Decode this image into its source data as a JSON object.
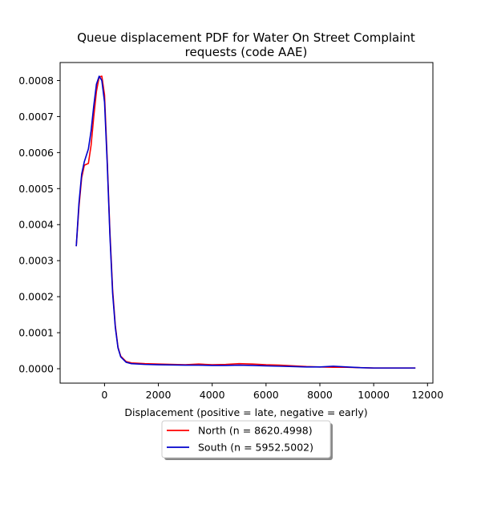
{
  "chart_data": {
    "type": "line",
    "title_lines": [
      "Queue displacement PDF for Water On Street Complaint",
      "requests (code AAE)"
    ],
    "xlabel": "Displacement (positive = late, negative = early)",
    "ylabel": "",
    "xlim": [
      -1650,
      12200
    ],
    "ylim": [
      -4e-05,
      0.00085
    ],
    "x_ticks": [
      0,
      2000,
      4000,
      6000,
      8000,
      10000,
      12000
    ],
    "x_tick_labels": [
      "0",
      "2000",
      "4000",
      "6000",
      "8000",
      "10000",
      "12000"
    ],
    "y_ticks": [
      0,
      0.0001,
      0.0002,
      0.0003,
      0.0004,
      0.0005,
      0.0006,
      0.0007,
      0.0008
    ],
    "y_tick_labels": [
      "0.0000",
      "0.0001",
      "0.0002",
      "0.0003",
      "0.0004",
      "0.0005",
      "0.0006",
      "0.0007",
      "0.0008"
    ],
    "grid": false,
    "legend_position": "below",
    "series": [
      {
        "name": "North (n = 8620.4998)",
        "color": "#ff0000",
        "points": [
          [
            -1050,
            0.00034
          ],
          [
            -950,
            0.00045
          ],
          [
            -850,
            0.00053
          ],
          [
            -750,
            0.000565
          ],
          [
            -600,
            0.00057
          ],
          [
            -500,
            0.00062
          ],
          [
            -400,
            0.0007
          ],
          [
            -300,
            0.00077
          ],
          [
            -200,
            0.00081
          ],
          [
            -100,
            0.000812
          ],
          [
            0,
            0.00076
          ],
          [
            100,
            0.00058
          ],
          [
            200,
            0.00038
          ],
          [
            300,
            0.00022
          ],
          [
            400,
            0.00012
          ],
          [
            500,
            6e-05
          ],
          [
            600,
            3.5e-05
          ],
          [
            800,
            2e-05
          ],
          [
            1000,
            1.6e-05
          ],
          [
            1500,
            1.4e-05
          ],
          [
            2000,
            1.3e-05
          ],
          [
            3000,
            1.1e-05
          ],
          [
            3500,
            1.3e-05
          ],
          [
            4000,
            1.1e-05
          ],
          [
            4500,
            1.2e-05
          ],
          [
            5000,
            1.4e-05
          ],
          [
            5500,
            1.3e-05
          ],
          [
            6000,
            1.1e-05
          ],
          [
            6500,
            1e-05
          ],
          [
            7000,
            8e-06
          ],
          [
            7500,
            6e-06
          ],
          [
            8000,
            5e-06
          ],
          [
            8500,
            4e-06
          ],
          [
            9000,
            4e-06
          ],
          [
            9500,
            3e-06
          ],
          [
            10000,
            2e-06
          ],
          [
            11000,
            2e-06
          ],
          [
            11550,
            2e-06
          ]
        ]
      },
      {
        "name": "South (n = 5952.5002)",
        "color": "#0000cc",
        "points": [
          [
            -1050,
            0.00034
          ],
          [
            -950,
            0.00046
          ],
          [
            -850,
            0.00054
          ],
          [
            -750,
            0.000575
          ],
          [
            -600,
            0.00061
          ],
          [
            -500,
            0.00066
          ],
          [
            -400,
            0.00073
          ],
          [
            -300,
            0.00079
          ],
          [
            -200,
            0.000812
          ],
          [
            -100,
            0.0008
          ],
          [
            0,
            0.00074
          ],
          [
            100,
            0.00057
          ],
          [
            200,
            0.00037
          ],
          [
            300,
            0.00021
          ],
          [
            400,
            0.000115
          ],
          [
            500,
            5.8e-05
          ],
          [
            600,
            3.3e-05
          ],
          [
            800,
            1.8e-05
          ],
          [
            1000,
            1.4e-05
          ],
          [
            1500,
            1.2e-05
          ],
          [
            2000,
            1.1e-05
          ],
          [
            3000,
            1e-05
          ],
          [
            3500,
            1e-05
          ],
          [
            4000,
            9e-06
          ],
          [
            4500,
            9e-06
          ],
          [
            5000,
            1e-05
          ],
          [
            5500,
            9e-06
          ],
          [
            6000,
            8e-06
          ],
          [
            6500,
            7e-06
          ],
          [
            7000,
            6e-06
          ],
          [
            7500,
            5e-06
          ],
          [
            8000,
            5e-06
          ],
          [
            8500,
            7e-06
          ],
          [
            9000,
            5e-06
          ],
          [
            9500,
            3e-06
          ],
          [
            10000,
            2e-06
          ],
          [
            11000,
            2e-06
          ],
          [
            11550,
            2e-06
          ]
        ]
      }
    ]
  }
}
